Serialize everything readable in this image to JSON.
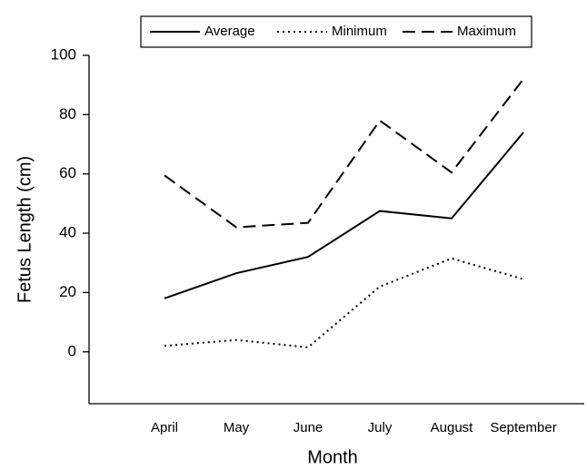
{
  "chart_data": {
    "type": "line",
    "x_label": "Month",
    "y_label": "Fetus Length (cm)",
    "categories": [
      "April",
      "May",
      "June",
      "July",
      "August",
      "September"
    ],
    "series": [
      {
        "name": "Average",
        "color": "#000000",
        "dash": "solid",
        "values": [
          18,
          26.5,
          32,
          47.5,
          45,
          74
        ]
      },
      {
        "name": "Minimum",
        "color": "#000000",
        "dash": "dotted",
        "values": [
          2,
          4,
          1.5,
          22,
          31.5,
          24.5
        ]
      },
      {
        "name": "Maximum",
        "color": "#000000",
        "dash": "dashed",
        "values": [
          59.5,
          42,
          43.5,
          78,
          60.5,
          92
        ]
      }
    ],
    "ylim": [
      -17.5,
      100
    ],
    "yticks": [
      0,
      20,
      40,
      60,
      80,
      100
    ],
    "grid": false,
    "legend": "top"
  }
}
